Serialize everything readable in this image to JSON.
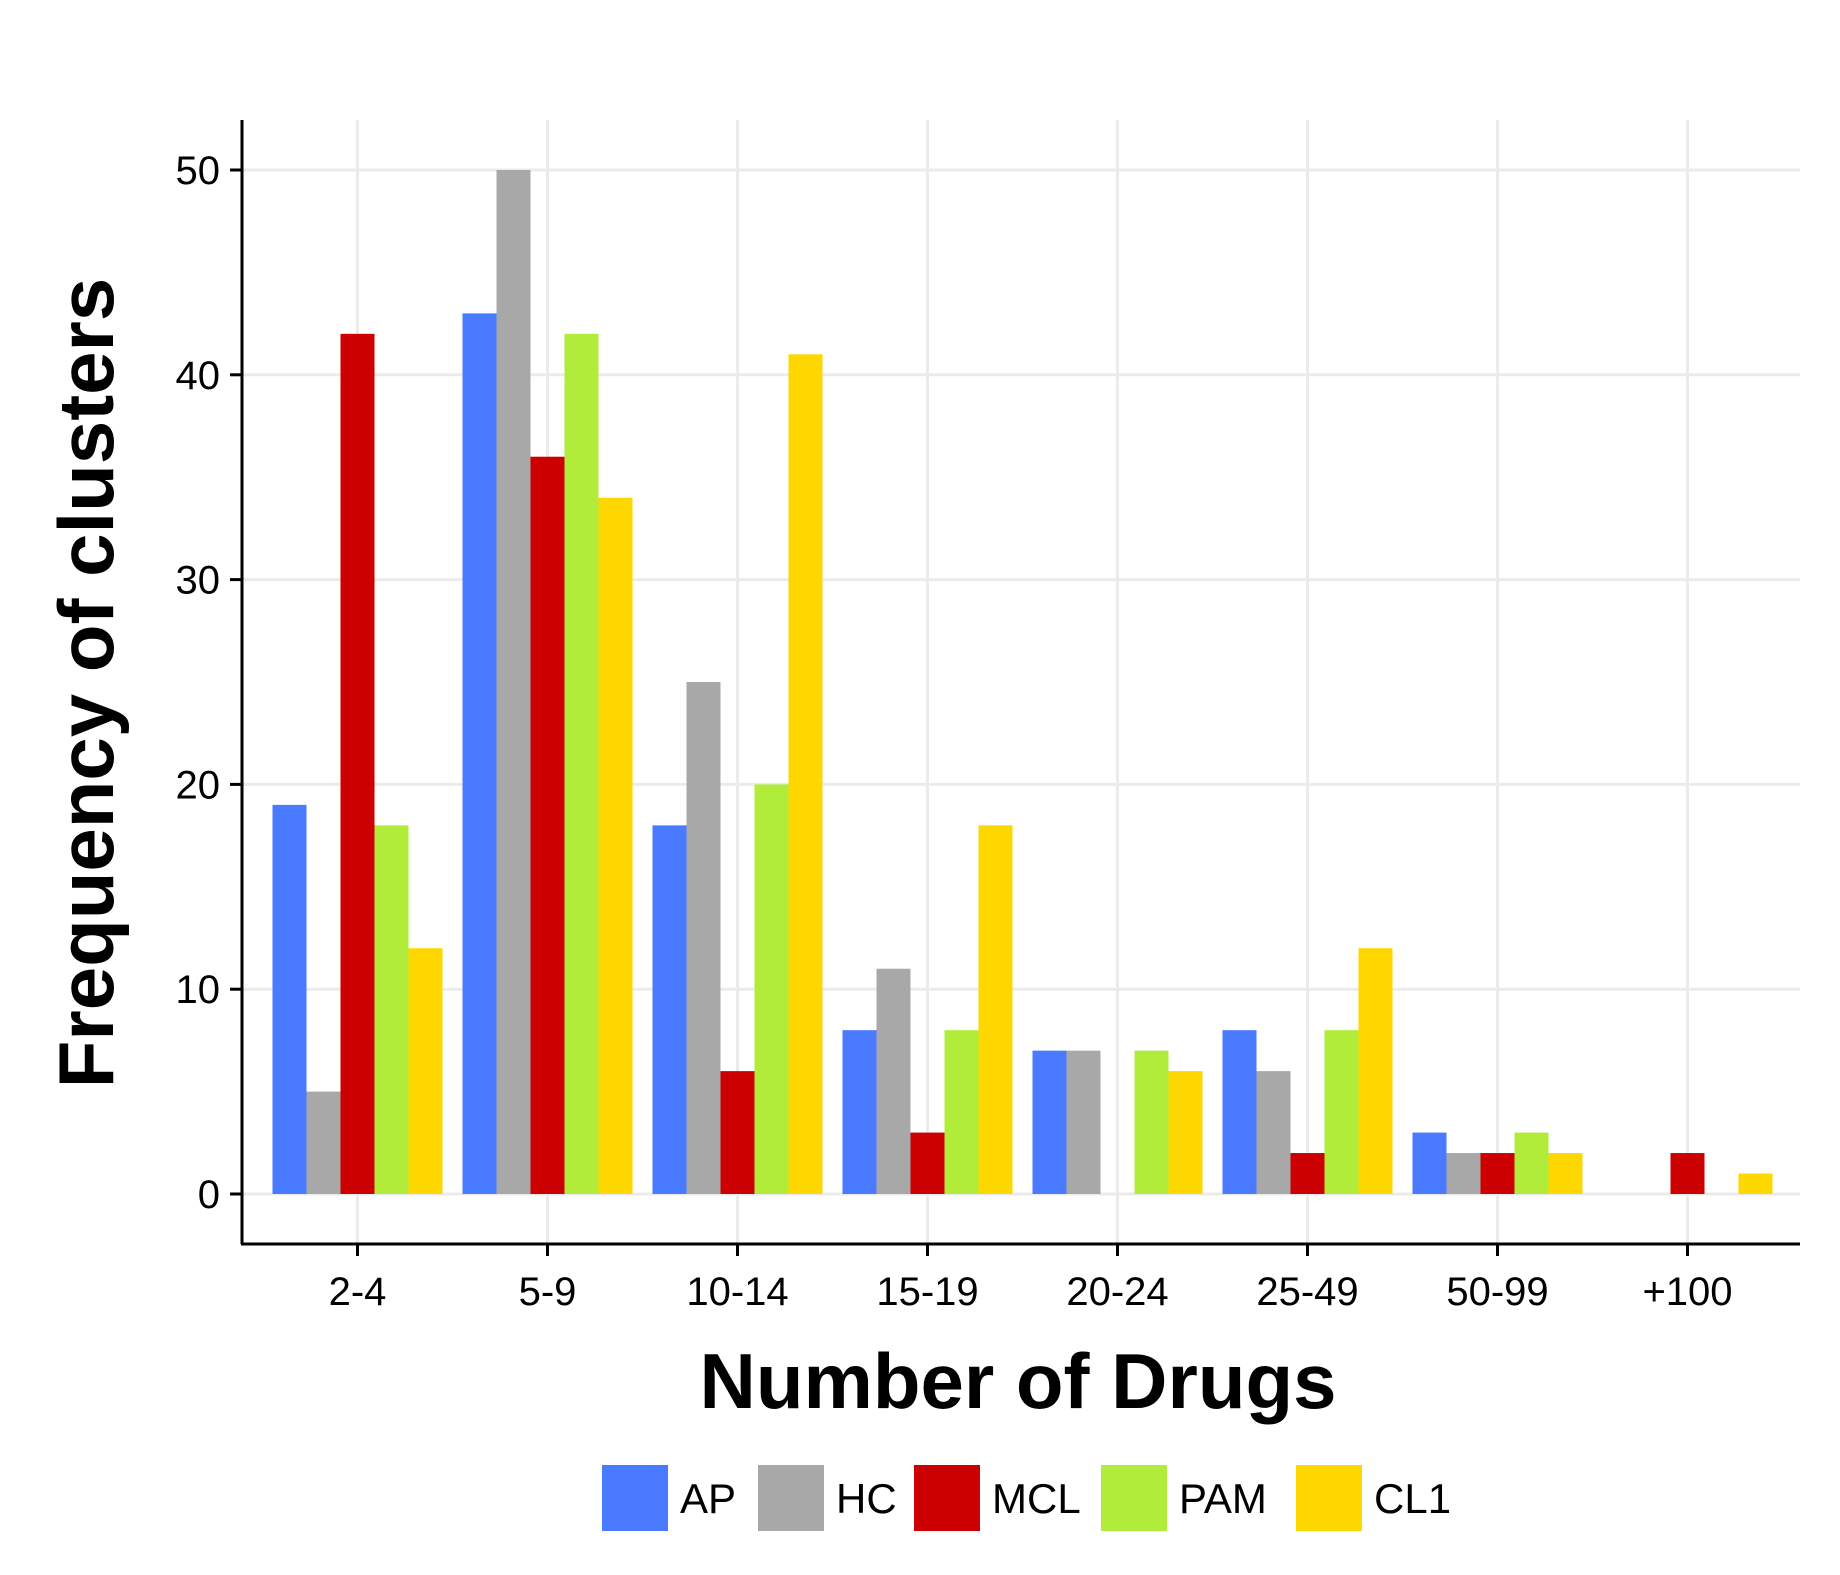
{
  "chart_data": {
    "type": "bar",
    "title": "",
    "xlabel": "Number of Drugs",
    "ylabel": "Frequency of clusters",
    "categories": [
      "2-4",
      "5-9",
      "10-14",
      "15-19",
      "20-24",
      "25-49",
      "50-99",
      "+100"
    ],
    "ylim": [
      0,
      50
    ],
    "yticks": [
      0,
      10,
      20,
      30,
      40,
      50
    ],
    "grid": true,
    "legend_position": "bottom",
    "series": [
      {
        "name": "AP",
        "color": "#4a7aff",
        "values": [
          19,
          43,
          18,
          8,
          7,
          8,
          3,
          0
        ]
      },
      {
        "name": "HC",
        "color": "#a8a8a8",
        "values": [
          5,
          50,
          25,
          11,
          7,
          6,
          2,
          0
        ]
      },
      {
        "name": "MCL",
        "color": "#cc0000",
        "values": [
          42,
          36,
          6,
          3,
          0,
          2,
          2,
          2
        ]
      },
      {
        "name": "PAM",
        "color": "#b2ec3b",
        "values": [
          18,
          42,
          20,
          8,
          7,
          8,
          3,
          0
        ]
      },
      {
        "name": "CL1",
        "color": "#ffd700",
        "values": [
          12,
          34,
          41,
          18,
          6,
          12,
          2,
          1
        ]
      }
    ]
  }
}
